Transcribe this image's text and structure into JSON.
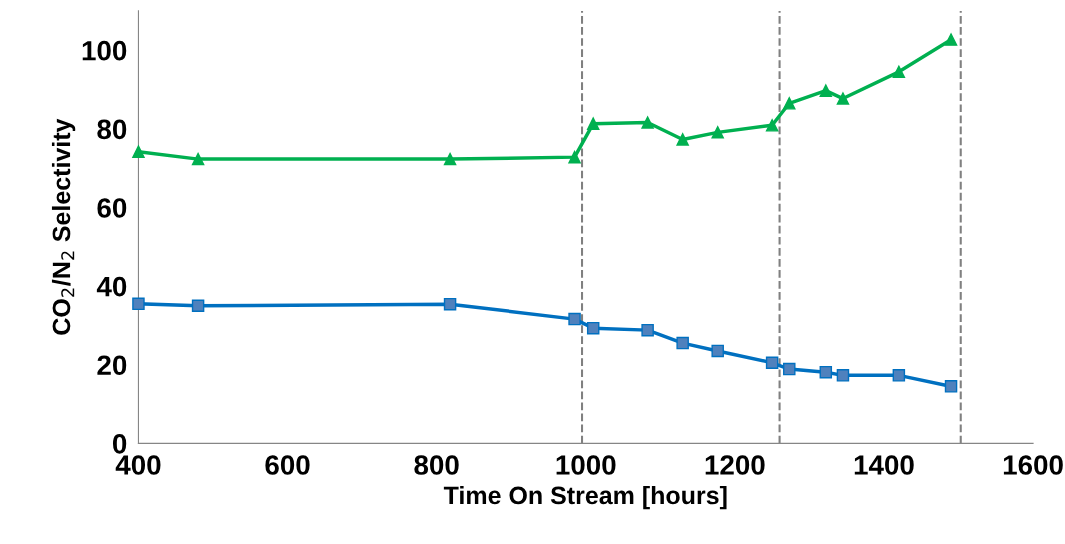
{
  "chart_data": {
    "type": "line",
    "xlabel": "Time On Stream [hours]",
    "ylabel": "CO$_{2}$/N$_{2}$ Selectivity",
    "x": [
      400,
      480,
      818,
      985,
      1010,
      1083,
      1130,
      1177,
      1250,
      1273,
      1322,
      1345,
      1420,
      1490
    ],
    "series": [
      {
        "color": "#00b050",
        "marker": "triangle",
        "values": [
          74.2,
          72.3,
          72.3,
          72.8,
          81.3,
          81.6,
          77.3,
          79.1,
          80.9,
          86.5,
          89.7,
          87.7,
          94.5,
          102.7
        ]
      },
      {
        "color": "#0070c0",
        "marker": "square",
        "values": [
          35.5,
          35.0,
          35.4,
          31.6,
          29.3,
          28.8,
          25.5,
          23.5,
          20.5,
          18.9,
          18.1,
          17.3,
          17.3,
          14.5
        ]
      }
    ],
    "xlim": [
      400,
      1600
    ],
    "xticks": [
      400,
      600,
      800,
      1000,
      1200,
      1400,
      1600
    ],
    "ylim": [
      0,
      110
    ],
    "yticks": [
      0,
      20,
      40,
      60,
      80,
      100
    ],
    "ref_lines": [
      {
        "axis": "x",
        "value": 995,
        "color": "#808080",
        "line_style": "dashed"
      },
      {
        "axis": "x",
        "value": 1260,
        "color": "#808080",
        "line_style": "dashed"
      },
      {
        "axis": "x",
        "value": 1503,
        "color": "#808080",
        "line_style": "dashed"
      }
    ],
    "grid": false,
    "legend": false,
    "line_style": "solid"
  }
}
